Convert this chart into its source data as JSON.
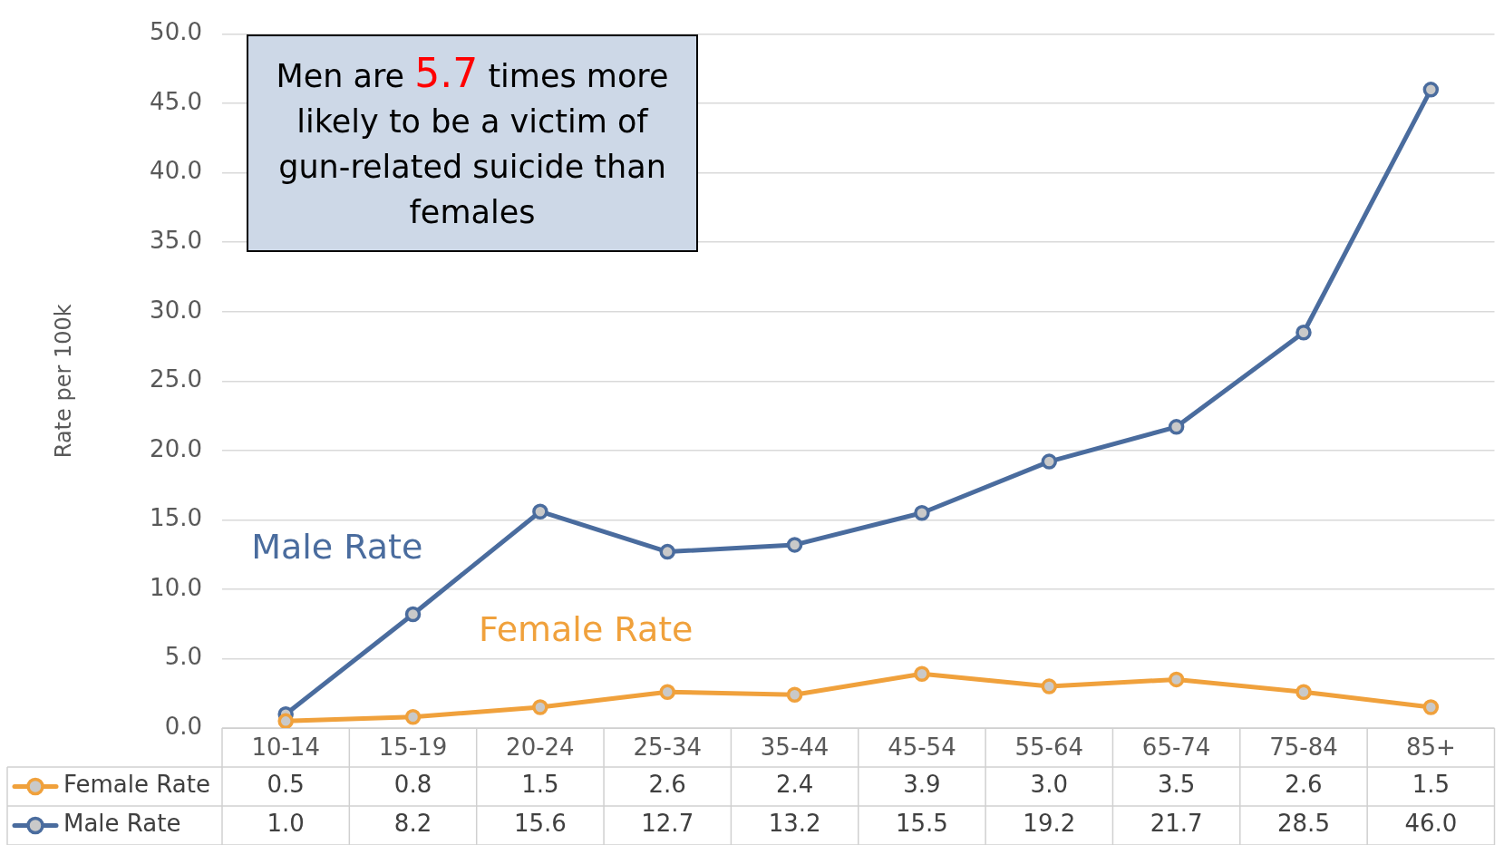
{
  "chart_data": {
    "type": "line",
    "ylabel": "Rate per 100k",
    "categories": [
      "10-14",
      "15-19",
      "20-24",
      "25-34",
      "35-44",
      "45-54",
      "55-64",
      "65-74",
      "75-84",
      "85+"
    ],
    "series": [
      {
        "name": "Female Rate",
        "color": "#f0a13c",
        "values": [
          0.5,
          0.8,
          1.5,
          2.6,
          2.4,
          3.9,
          3.0,
          3.5,
          2.6,
          1.5
        ],
        "value_labels": [
          "0.5",
          "0.8",
          "1.5",
          "2.6",
          "2.4",
          "3.9",
          "3.0",
          "3.5",
          "2.6",
          "1.5"
        ]
      },
      {
        "name": "Male Rate",
        "color": "#4a6c9e",
        "values": [
          1.0,
          8.2,
          15.6,
          12.7,
          13.2,
          15.5,
          19.2,
          21.7,
          28.5,
          46.0
        ],
        "value_labels": [
          "1.0",
          "8.2",
          "15.6",
          "12.7",
          "13.2",
          "15.5",
          "19.2",
          "21.7",
          "28.5",
          "46.0"
        ]
      }
    ],
    "ylim": [
      0,
      50
    ],
    "yticks": [
      {
        "value": 0,
        "label": "0.0"
      },
      {
        "value": 5,
        "label": "5.0"
      },
      {
        "value": 10,
        "label": "10.0"
      },
      {
        "value": 15,
        "label": "15.0"
      },
      {
        "value": 20,
        "label": "20.0"
      },
      {
        "value": 25,
        "label": "25.0"
      },
      {
        "value": 30,
        "label": "30.0"
      },
      {
        "value": 35,
        "label": "35.0"
      },
      {
        "value": 40,
        "label": "40.0"
      },
      {
        "value": 45,
        "label": "45.0"
      },
      {
        "value": 50,
        "label": "50.0"
      }
    ],
    "grid": "y",
    "legend": "bottom",
    "marker": "circle",
    "line_style": "solid",
    "annotations": [
      "Men are 5.7 times more likely to be a victim of gun-related suicide than females"
    ]
  }
}
